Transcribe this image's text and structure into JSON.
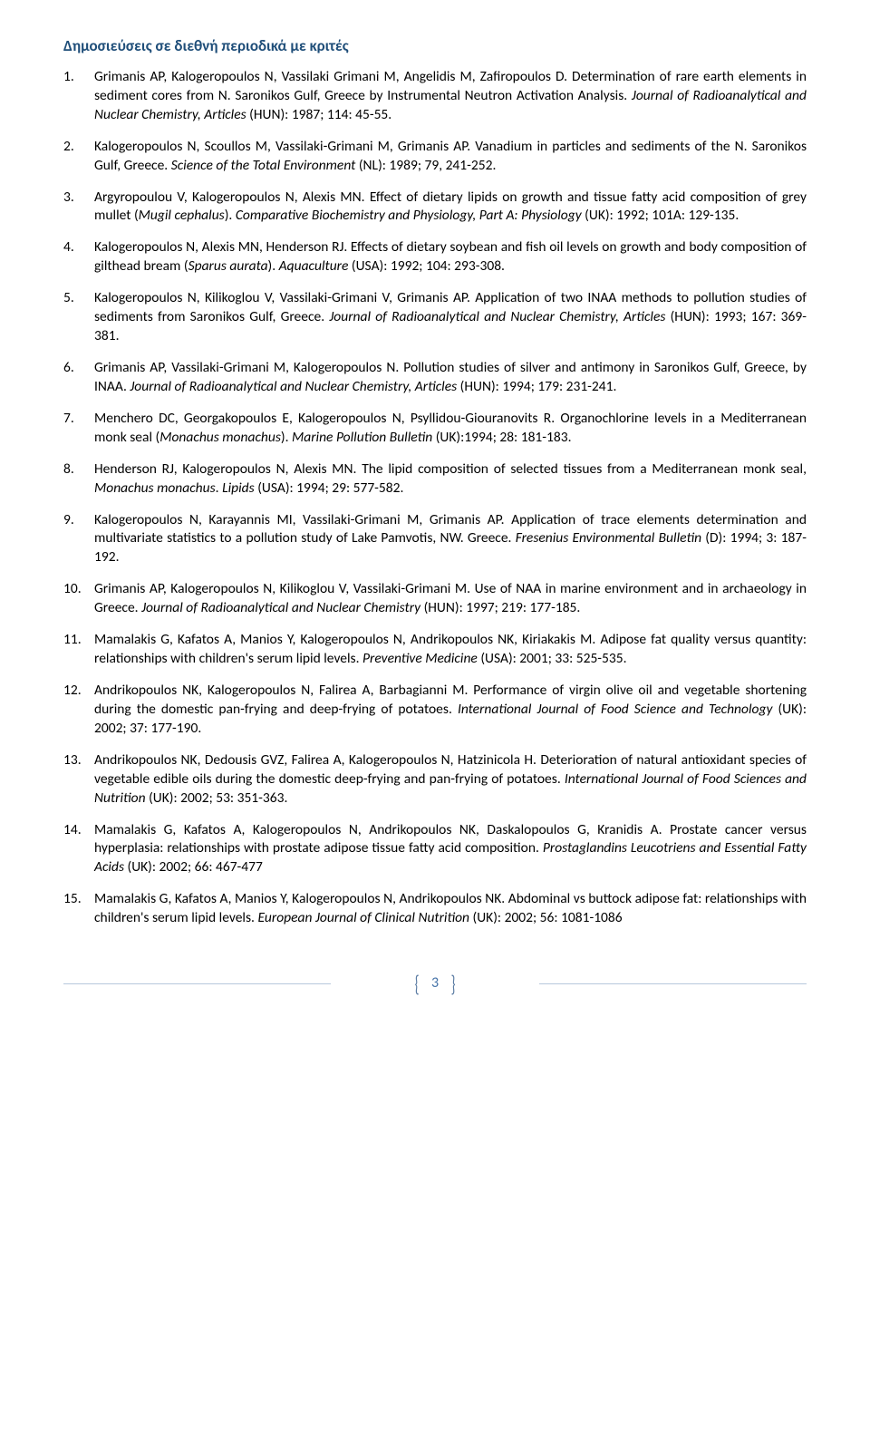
{
  "section_title": "Δημοσιεύσεις σε διεθνή περιοδικά με κριτές",
  "page_number": "3",
  "colors": {
    "title_color": "#1f4e79",
    "text_color": "#000000",
    "footer_accent": "#5b7ca3",
    "background": "#ffffff"
  },
  "references": [
    {
      "num": 1,
      "authors": "Grimanis AP, Kalogeropoulos N, Vassilaki Grimani M, Angelidis M, Zafiropoulos D.",
      "title": "Determination of rare earth elements in sediment cores from N. Saronikos Gulf, Greece by Instrumental Neutron Activation Analysis.",
      "journal": "Journal of Radioanalytical and Nuclear Chemistry, Articles",
      "loc": " (HUN): 1987; 114: 45-55."
    },
    {
      "num": 2,
      "authors": "Kalogeropoulos N, Scoullos M, Vassilaki-Grimani M, Grimanis AP.",
      "title": "Vanadium in particles and sediments of the N. Saronikos Gulf, Greece.",
      "journal": "Science of the Total Environment",
      "loc": " (NL): 1989; 79, 241-252."
    },
    {
      "num": 3,
      "authors": "Argyropoulou V, Kalogeropoulos N, Alexis MN.",
      "title_pre": "Effect of dietary lipids on growth and tissue fatty acid composition of grey mullet (",
      "species": "Mugil cephalus",
      "title_post": ").",
      "journal": "Comparative Biochemistry and Physiology, Part A: Physiology",
      "loc": " (UK): 1992; 101A: 129-135."
    },
    {
      "num": 4,
      "authors": "Kalogeropoulos N, Alexis MN, Henderson RJ.",
      "title_pre": "Effects of dietary soybean and fish oil levels on growth and body composition of gilthead bream (",
      "species": "Sparus aurata",
      "title_post": ").",
      "journal": "Aquaculture",
      "loc": " (USA): 1992; 104: 293-308."
    },
    {
      "num": 5,
      "authors": "Kalogeropoulos N, Kilikoglou V, Vassilaki-Grimani V, Grimanis AP.",
      "title": "Application of two INAA methods to pollution studies of sediments from Saronikos Gulf, Greece.",
      "journal": "Journal of Radioanalytical and Nuclear Chemistry, Articles",
      "loc": " (HUN): 1993; 167: 369-381."
    },
    {
      "num": 6,
      "authors": "Grimanis AP, Vassilaki-Grimani M, Kalogeropoulos N.",
      "title": "Pollution studies of silver and antimony in Saronikos Gulf, Greece, by INAA.",
      "journal": "Journal of Radioanalytical and Nuclear Chemistry, Articles",
      "loc": " (HUN): 1994; 179: 231-241."
    },
    {
      "num": 7,
      "authors": "Menchero DC, Georgakopoulos E, Kalogeropoulos N, Psyllidou-Giouranovits R.",
      "title_pre": "Organochlorine levels in a Mediterranean monk seal (",
      "species": "Monachus monachus",
      "title_post": ").",
      "journal": "Marine Pollution Bulletin",
      "loc": " (UK):1994; 28: 181-183."
    },
    {
      "num": 8,
      "authors": "Henderson RJ, Kalogeropoulos N, Alexis MN.",
      "title_pre": "The lipid composition of selected tissues from a Mediterranean monk seal, ",
      "species": "Monachus monachus",
      "title_post": ".",
      "journal": "Lipids",
      "loc": " (USA): 1994; 29: 577-582."
    },
    {
      "num": 9,
      "authors": "Kalogeropoulos N, Karayannis MI, Vassilaki-Grimani M, Grimanis AP.",
      "title": "Application of trace elements determination and multivariate statistics to a pollution study of Lake Pamvotis, NW. Greece.",
      "journal": "Fresenius Environmental Bulletin",
      "loc": " (D): 1994; 3: 187-192."
    },
    {
      "num": 10,
      "authors": "Grimanis AP, Kalogeropoulos N, Kilikoglou V, Vassilaki-Grimani M.",
      "title": "Use of NAA in marine environment and in archaeology in Greece.",
      "journal": "Journal of Radioanalytical and Nuclear Chemistry",
      "loc": " (HUN): 1997; 219: 177-185."
    },
    {
      "num": 11,
      "authors": "Mamalakis G, Kafatos A, Manios Y, Kalogeropoulos N, Andrikopoulos NK, Kiriakakis M.",
      "title": "Adipose fat quality versus quantity: relationships with children's serum lipid levels.",
      "journal": "Preventive Medicine",
      "loc": " (USA): 2001; 33: 525-535."
    },
    {
      "num": 12,
      "authors": "Andrikopoulos NK, Kalogeropoulos N, Falirea A, Barbagianni M.",
      "title": "Performance of virgin olive oil and vegetable shortening during the domestic pan-frying and deep-frying of potatoes.",
      "journal": "International Journal of Food Science and Technology",
      "loc": " (UK): 2002; 37: 177-190."
    },
    {
      "num": 13,
      "authors": "Andrikopoulos NK, Dedousis GVZ, Falirea A, Kalogeropoulos N, Hatzinicola H.",
      "title": "Deterioration of natural antioxidant species of vegetable edible oils during the domestic deep-frying and pan-frying of potatoes.",
      "journal": "International Journal of Food Sciences and Nutrition",
      "loc": " (UK): 2002; 53: 351-363."
    },
    {
      "num": 14,
      "authors": "Mamalakis G, Kafatos A, Kalogeropoulos N, Andrikopoulos NK, Daskalopoulos G, Kranidis A.",
      "title": "Prostate cancer versus hyperplasia: relationships with prostate adipose tissue fatty acid composition.",
      "journal": "Prostaglandins Leucotriens and Essential Fatty Acids",
      "loc": " (UK): 2002; 66: 467-477"
    },
    {
      "num": 15,
      "authors": "Mamalakis G, Kafatos A, Manios Y, Kalogeropoulos N, Andrikopoulos NK.",
      "title": "Abdominal vs buttock adipose fat: relationships with children's serum lipid levels.",
      "journal": "European Journal of Clinical Nutrition",
      "loc": " (UK): 2002; 56: 1081-1086"
    }
  ]
}
